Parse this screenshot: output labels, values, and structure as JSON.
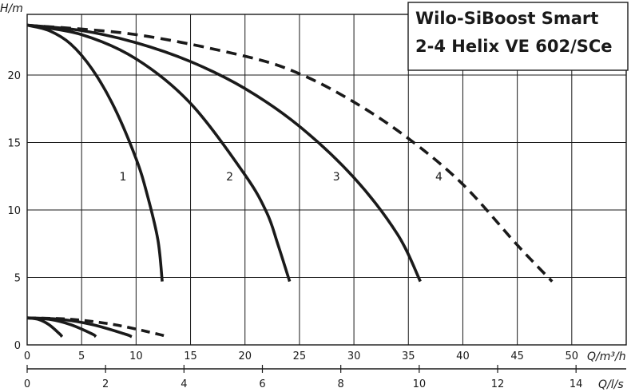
{
  "chart_data": {
    "type": "line",
    "title": {
      "line1": "Wilo-SiBoost Smart",
      "line2": "2-4 Helix VE 602/SCe"
    },
    "y_axis": {
      "symbol": "H",
      "unit": "/m",
      "range": [
        0,
        24.5
      ],
      "ticks": [
        0,
        5,
        10,
        15,
        20
      ]
    },
    "x_axis_m3h": {
      "symbol": "Q",
      "unit": "/m³/h",
      "range": [
        0,
        55
      ],
      "ticks": [
        0,
        5,
        10,
        15,
        20,
        25,
        30,
        35,
        40,
        45,
        50
      ]
    },
    "x_axis_ls": {
      "symbol": "Q",
      "unit": "/l/s",
      "range": [
        0,
        15.28
      ],
      "ticks": [
        0,
        2,
        4,
        6,
        8,
        10,
        12,
        14
      ]
    },
    "grid": true,
    "series": [
      {
        "name": "1",
        "style": "solid",
        "x": [
          0,
          2,
          4,
          6,
          8,
          10,
          11,
          12,
          12.4
        ],
        "y": [
          23.7,
          23.3,
          22.3,
          20.4,
          17.6,
          13.8,
          11.2,
          7.8,
          4.7
        ]
      },
      {
        "name": "2",
        "style": "solid",
        "x": [
          0,
          5,
          10,
          15,
          20,
          22,
          23,
          24.1
        ],
        "y": [
          23.7,
          23.0,
          21.2,
          17.9,
          12.6,
          9.8,
          7.5,
          4.7
        ]
      },
      {
        "name": "3",
        "style": "solid",
        "x": [
          0,
          5,
          10,
          15,
          20,
          25,
          30,
          34,
          36.1
        ],
        "y": [
          23.7,
          23.3,
          22.4,
          21.0,
          19.0,
          16.2,
          12.4,
          8.2,
          4.7
        ]
      },
      {
        "name": "4",
        "style": "dashed",
        "x": [
          0,
          10,
          20,
          25,
          30,
          35,
          40,
          45,
          48.2
        ],
        "y": [
          23.7,
          23.0,
          21.4,
          20.1,
          18.0,
          15.3,
          11.9,
          7.4,
          4.7
        ]
      }
    ],
    "curve_labels": [
      {
        "text": "1",
        "x": 8.8,
        "y": 12.5
      },
      {
        "text": "2",
        "x": 18.6,
        "y": 12.5
      },
      {
        "text": "3",
        "x": 28.4,
        "y": 12.5
      },
      {
        "text": "4",
        "x": 37.8,
        "y": 12.5
      }
    ],
    "low_curves": [
      {
        "style": "solid",
        "x": [
          0,
          1,
          2,
          3,
          3.2
        ],
        "y": [
          2.0,
          1.9,
          1.5,
          0.8,
          0.6
        ]
      },
      {
        "style": "solid",
        "x": [
          0,
          2,
          4,
          6,
          6.3
        ],
        "y": [
          2.0,
          1.9,
          1.5,
          0.8,
          0.6
        ]
      },
      {
        "style": "solid",
        "x": [
          0,
          3,
          6,
          9,
          9.6
        ],
        "y": [
          2.0,
          1.9,
          1.5,
          0.8,
          0.6
        ]
      },
      {
        "style": "dashed",
        "x": [
          0,
          4,
          8,
          12,
          12.8
        ],
        "y": [
          2.0,
          1.9,
          1.5,
          0.8,
          0.6
        ]
      }
    ]
  }
}
